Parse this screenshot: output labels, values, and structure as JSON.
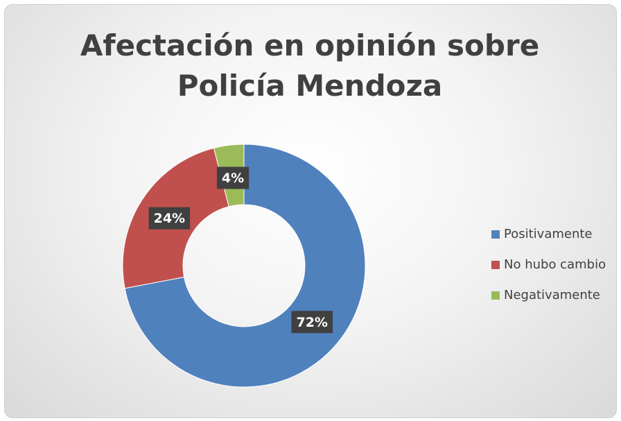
{
  "chart_data": {
    "type": "donut",
    "title": "Afectación en opinión sobre Policía Mendoza",
    "categories": [
      "Positivamente",
      "No hubo cambio",
      "Negativamente"
    ],
    "values": [
      72,
      24,
      4
    ],
    "value_labels": [
      "72%",
      "24%",
      "4%"
    ],
    "colors": [
      "#4f81bd",
      "#c0504d",
      "#9bbb59"
    ],
    "legend": "right"
  }
}
